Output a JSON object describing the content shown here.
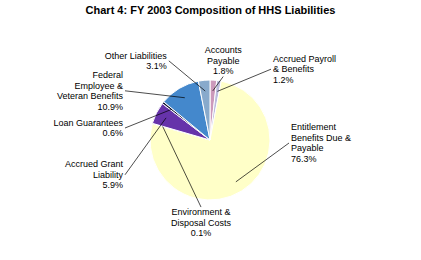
{
  "chart_data": {
    "type": "pie",
    "title": "Chart 4: FY 2003 Composition of HHS Liabilities",
    "categories": [
      "Accounts\nPayable",
      "Accrued Payroll\n& Benefits",
      "Entitlement\nBenefits Due &\nPayable",
      "Environment &\nDisposal Costs",
      "Accrued Grant\nLiability",
      "Loan Guarantees",
      "Federal\nEmployee &\nVeteran Benefits",
      "Other Liabilities"
    ],
    "values": [
      1.8,
      1.2,
      76.3,
      0.1,
      5.9,
      0.6,
      10.9,
      3.1
    ],
    "value_labels": [
      "1.8%",
      "1.2%",
      "76.3%",
      "0.1%",
      "5.9%",
      "0.6%",
      "10.9%",
      "3.1%"
    ],
    "colors": [
      "#CC99BB",
      "#BBBBDD",
      "#FFFFC8",
      "#111111",
      "#6633AA",
      "#111133",
      "#4488CC",
      "#88AACC"
    ],
    "data_labels": true
  }
}
